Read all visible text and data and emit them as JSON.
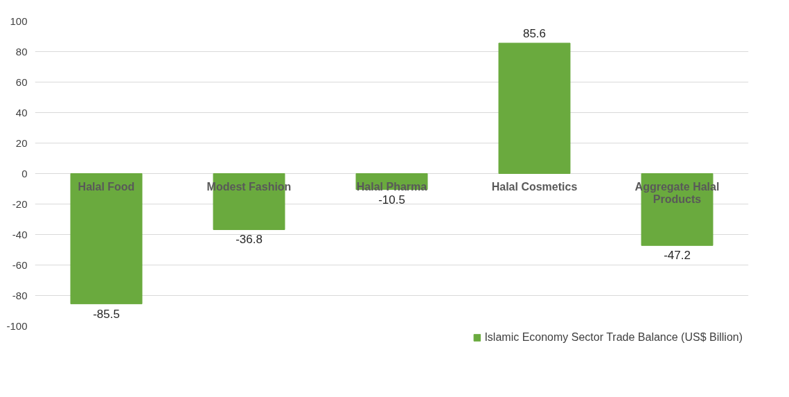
{
  "chart_data": {
    "type": "bar",
    "categories": [
      "Halal Food",
      "Modest Fashion",
      "Halal Pharma",
      "Halal Cosmetics",
      "Aggregate Halal Products"
    ],
    "series": [
      {
        "name": "Islamic Economy Sector Trade Balance (US$ Billion)",
        "color": "#6aaa3e",
        "values": [
          -85.5,
          -36.8,
          -10.5,
          85.6,
          -47.2
        ]
      }
    ],
    "ylim": [
      -100,
      100
    ],
    "yticks": [
      -100,
      -80,
      -60,
      -40,
      -20,
      0,
      20,
      40,
      60,
      80,
      100
    ],
    "grid": "y",
    "legend": "bottom",
    "data_labels": true
  }
}
